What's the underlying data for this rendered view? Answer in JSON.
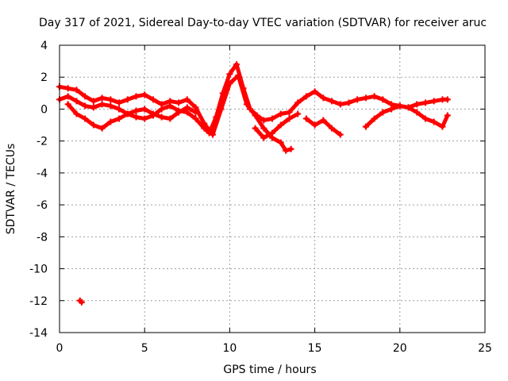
{
  "chart_data": {
    "type": "scatter",
    "title": "Day 317 of 2021, Sidereal Day-to-day VTEC variation (SDTVAR) for receiver aruc",
    "xlabel": "GPS time / hours",
    "ylabel": "SDTVAR / TECUs",
    "xlim": [
      0,
      25
    ],
    "ylim": [
      -14,
      4
    ],
    "xticks": [
      0,
      5,
      10,
      15,
      20,
      25
    ],
    "yticks": [
      4,
      2,
      0,
      -2,
      -4,
      -6,
      -8,
      -10,
      -12,
      -14
    ],
    "xtick_labels": [
      "0",
      "5",
      "10",
      "15",
      "20",
      "25"
    ],
    "ytick_labels": [
      "4",
      "2",
      "0",
      "-2",
      "-4",
      "-6",
      "-8",
      "-10",
      "-12",
      "-14"
    ],
    "grid": true,
    "legend": "none",
    "series": [
      {
        "name": "track-1",
        "color": "#ff0000",
        "x": [
          0.0,
          0.5,
          1.0,
          1.5,
          2.0,
          2.5,
          3.0,
          3.5,
          4.0,
          4.5,
          5.0,
          5.5,
          6.0,
          6.5,
          7.0,
          7.5,
          8.0,
          8.5,
          8.8,
          9.2,
          9.6,
          10.0,
          10.4,
          10.8,
          11.2,
          11.6,
          12.0,
          12.5,
          13.0,
          13.5,
          14.0,
          14.5,
          15.0,
          15.5,
          16.0,
          16.5,
          17.0,
          17.5,
          18.0,
          18.5,
          19.0,
          19.5,
          20.0,
          20.5,
          21.0,
          21.5,
          22.0,
          22.5,
          22.8
        ],
        "y": [
          0.6,
          0.8,
          0.5,
          0.2,
          0.1,
          0.3,
          0.2,
          0.0,
          -0.3,
          -0.5,
          -0.6,
          -0.4,
          0.0,
          0.2,
          -0.1,
          -0.2,
          -0.6,
          -1.2,
          -1.5,
          -0.5,
          1.0,
          2.2,
          2.8,
          1.3,
          0.0,
          -0.4,
          -0.7,
          -0.6,
          -0.3,
          -0.2,
          0.4,
          0.8,
          1.1,
          0.7,
          0.5,
          0.3,
          0.4,
          0.6,
          0.7,
          0.8,
          0.6,
          0.3,
          0.2,
          0.1,
          0.3,
          0.4,
          0.5,
          0.6,
          0.6
        ]
      },
      {
        "name": "track-2",
        "color": "#ff0000",
        "x": [
          0.0,
          0.5,
          1.0,
          1.5,
          2.0,
          2.5,
          3.0,
          3.5,
          4.0,
          4.5,
          5.0,
          5.5,
          6.0,
          6.5,
          7.0,
          7.5,
          8.0,
          8.5,
          9.0,
          9.5,
          10.0,
          10.5,
          11.0,
          11.5,
          12.0,
          12.5,
          13.0,
          13.3,
          13.6
        ],
        "y": [
          1.4,
          1.3,
          1.2,
          0.8,
          0.5,
          0.7,
          0.6,
          0.4,
          0.6,
          0.8,
          0.9,
          0.6,
          0.3,
          0.5,
          0.4,
          0.6,
          0.1,
          -0.9,
          -1.6,
          0.0,
          1.6,
          2.1,
          0.3,
          -0.4,
          -1.2,
          -1.8,
          -2.1,
          -2.6,
          -2.5
        ]
      },
      {
        "name": "track-3",
        "color": "#ff0000",
        "x": [
          0.5,
          1.0,
          1.5,
          2.0,
          2.5,
          3.0,
          3.5,
          4.0,
          4.5,
          5.0,
          5.5,
          6.0,
          6.5,
          7.0,
          7.5,
          8.0
        ],
        "y": [
          0.3,
          -0.3,
          -0.6,
          -1.0,
          -1.2,
          -0.8,
          -0.6,
          -0.3,
          -0.1,
          0.0,
          -0.3,
          -0.5,
          -0.6,
          -0.2,
          0.1,
          -0.2
        ]
      },
      {
        "name": "track-4",
        "color": "#ff0000",
        "x": [
          11.5,
          12.0,
          12.5,
          13.0,
          13.5,
          14.0
        ],
        "y": [
          -1.2,
          -1.8,
          -1.5,
          -1.0,
          -0.6,
          -0.3
        ]
      },
      {
        "name": "track-5",
        "color": "#ff0000",
        "x": [
          14.5,
          15.0,
          15.5,
          16.0,
          16.5
        ],
        "y": [
          -0.6,
          -1.0,
          -0.7,
          -1.2,
          -1.6
        ]
      },
      {
        "name": "track-6",
        "color": "#ff0000",
        "x": [
          18.0,
          18.5,
          19.0,
          19.5,
          20.0,
          20.5,
          21.0,
          21.5,
          22.0,
          22.5,
          22.8
        ],
        "y": [
          -1.1,
          -0.6,
          -0.2,
          0.0,
          0.2,
          0.1,
          -0.2,
          -0.6,
          -0.8,
          -1.1,
          -0.4
        ]
      },
      {
        "name": "outlier",
        "color": "#ff0000",
        "x": [
          1.2,
          1.3
        ],
        "y": [
          -12.0,
          -12.1
        ]
      }
    ]
  }
}
